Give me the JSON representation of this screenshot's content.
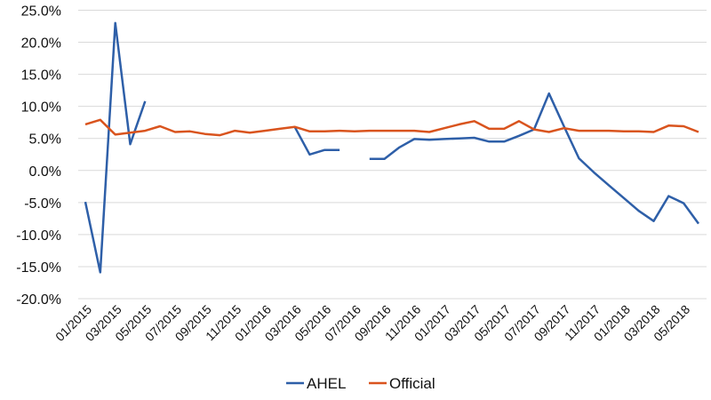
{
  "chart_data": {
    "type": "line",
    "title": "",
    "xlabel": "",
    "ylabel": "",
    "ylim": [
      -20,
      25
    ],
    "y_step": 5,
    "y_tick_labels": [
      "25.0%",
      "20.0%",
      "15.0%",
      "10.0%",
      "5.0%",
      "0.0%",
      "-5.0%",
      "-10.0%",
      "-15.0%",
      "-20.0%"
    ],
    "grid": true,
    "legend_position": "bottom",
    "x": [
      "01/2015",
      "02/2015",
      "03/2015",
      "04/2015",
      "05/2015",
      "06/2015",
      "07/2015",
      "08/2015",
      "09/2015",
      "10/2015",
      "11/2015",
      "12/2015",
      "01/2016",
      "02/2016",
      "03/2016",
      "04/2016",
      "05/2016",
      "06/2016",
      "07/2016",
      "08/2016",
      "09/2016",
      "10/2016",
      "11/2016",
      "12/2016",
      "01/2017",
      "02/2017",
      "03/2017",
      "04/2017",
      "05/2017",
      "06/2017",
      "07/2017",
      "08/2017",
      "09/2017",
      "10/2017",
      "11/2017",
      "12/2017",
      "01/2018",
      "02/2018",
      "03/2018",
      "04/2018",
      "05/2018",
      "06/2018"
    ],
    "x_tick_labels": [
      "01/2015",
      "03/2015",
      "05/2015",
      "07/2015",
      "09/2015",
      "11/2015",
      "01/2016",
      "03/2016",
      "05/2016",
      "07/2016",
      "09/2016",
      "11/2016",
      "01/2017",
      "03/2017",
      "05/2017",
      "07/2017",
      "09/2017",
      "11/2017",
      "01/2018",
      "03/2018",
      "05/2018"
    ],
    "series": [
      {
        "name": "AHEL",
        "color": "#2e5fa8",
        "values": [
          -4.9,
          -15.9,
          23.0,
          4.1,
          10.8,
          null,
          null,
          null,
          null,
          null,
          null,
          null,
          null,
          null,
          6.8,
          2.5,
          3.2,
          3.2,
          null,
          1.8,
          1.8,
          3.6,
          4.9,
          4.8,
          4.9,
          5.0,
          5.1,
          4.5,
          4.5,
          5.4,
          6.4,
          12.0,
          6.9,
          1.9,
          -0.3,
          -2.3,
          -4.3,
          -6.3,
          -7.9,
          -4.0,
          -5.1,
          -8.3
        ]
      },
      {
        "name": "Official",
        "color": "#d9541e",
        "values": [
          7.2,
          7.9,
          5.6,
          5.9,
          6.2,
          6.9,
          6.0,
          6.1,
          5.7,
          5.5,
          6.2,
          5.9,
          6.2,
          6.5,
          6.8,
          6.1,
          6.1,
          6.2,
          6.1,
          6.2,
          6.2,
          6.2,
          6.2,
          6.0,
          6.6,
          7.2,
          7.7,
          6.5,
          6.5,
          7.7,
          6.4,
          6.0,
          6.6,
          6.2,
          6.2,
          6.2,
          6.1,
          6.1,
          6.0,
          7.0,
          6.9,
          6.0
        ]
      }
    ]
  }
}
